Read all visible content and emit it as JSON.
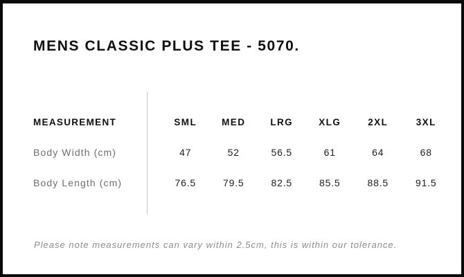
{
  "title": "MENS CLASSIC PLUS TEE - 5070.",
  "table": {
    "header_label": "MEASUREMENT",
    "sizes": [
      "SML",
      "MED",
      "LRG",
      "XLG",
      "2XL",
      "3XL"
    ],
    "rows": [
      {
        "label": "Body Width (cm)",
        "values": [
          "47",
          "52",
          "56.5",
          "61",
          "64",
          "68"
        ]
      },
      {
        "label": "Body Length (cm)",
        "values": [
          "76.5",
          "79.5",
          "82.5",
          "85.5",
          "88.5",
          "91.5"
        ]
      }
    ]
  },
  "note": "Please note measurements can vary within 2.5cm, this is within our tolerance.",
  "colors": {
    "background": "#ffffff",
    "border": "#0a0a0a",
    "title_text": "#0f0f0f",
    "header_text": "#101010",
    "label_text": "#6e6e6e",
    "value_text": "#1c1c1c",
    "note_text": "#8c8c8c",
    "divider": "#c5c5c5"
  },
  "chart_data": {
    "type": "table",
    "title": "MENS CLASSIC PLUS TEE - 5070.",
    "columns": [
      "MEASUREMENT",
      "SML",
      "MED",
      "LRG",
      "XLG",
      "2XL",
      "3XL"
    ],
    "rows": [
      [
        "Body Width (cm)",
        47,
        52,
        56.5,
        61,
        64,
        68
      ],
      [
        "Body Length (cm)",
        76.5,
        79.5,
        82.5,
        85.5,
        88.5,
        91.5
      ]
    ],
    "footnote": "Please note measurements can vary within 2.5cm, this is within our tolerance."
  }
}
